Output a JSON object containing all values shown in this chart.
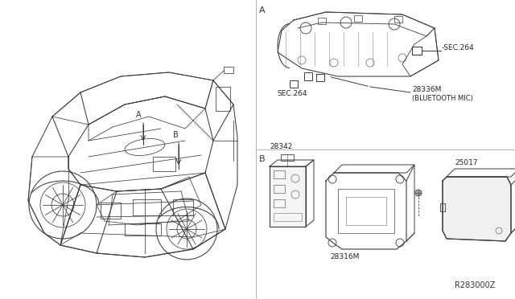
{
  "background_color": "#ffffff",
  "line_color": "#404040",
  "fig_width": 6.4,
  "fig_height": 3.72,
  "dpi": 100,
  "labels": {
    "A_section": "A",
    "B_section": "B",
    "sec264_1": "-SEC.264",
    "sec264_2": "SEC.264",
    "part_28336M": "28336M",
    "bluetooth_mic": "(BLUETOOTH MIC)",
    "part_28342": "28342",
    "part_28316M": "28316M",
    "part_25017": "25017",
    "ref_code": "R283000Z",
    "label_A_car": "A",
    "label_B_car": "B"
  }
}
